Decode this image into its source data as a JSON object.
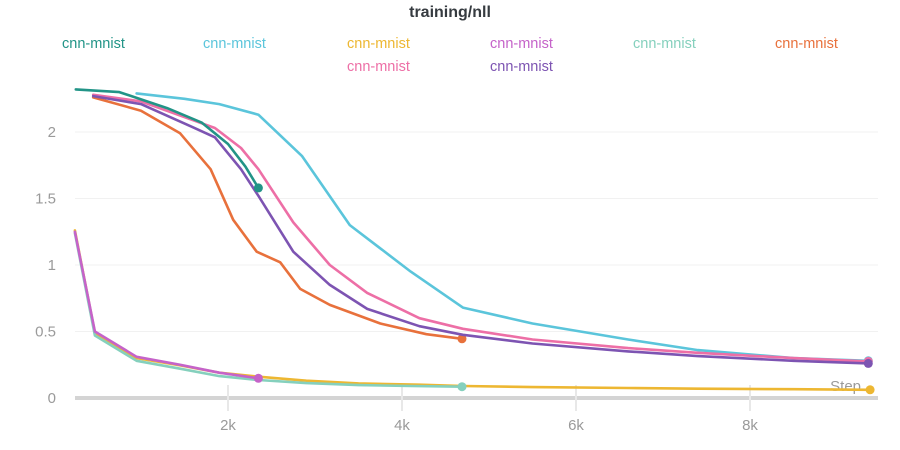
{
  "chart_data": {
    "type": "line",
    "title": "training/nll",
    "xlabel": "Step",
    "x_axis": {
      "ticks": [
        2000,
        4000,
        6000,
        8000
      ],
      "tick_labels": [
        "2k",
        "4k",
        "6k",
        "8k"
      ],
      "range": [
        0,
        9700
      ]
    },
    "y_axis": {
      "ticks": [
        0,
        0.5,
        1,
        1.5,
        2
      ],
      "tick_labels": [
        "0",
        "0.5",
        "1",
        "1.5",
        "2"
      ],
      "range": [
        0,
        2.45
      ],
      "grid": true
    },
    "legend_position": "top",
    "series": [
      {
        "label": "cnn-mnist",
        "color": "#229487",
        "points": [
          [
            250,
            2.32
          ],
          [
            750,
            2.3
          ],
          [
            1300,
            2.18
          ],
          [
            1700,
            2.07
          ],
          [
            2000,
            1.91
          ],
          [
            2200,
            1.74
          ],
          [
            2350,
            1.58
          ]
        ]
      },
      {
        "label": "cnn-mnist",
        "color": "#5BC5DB",
        "points": [
          [
            950,
            2.29
          ],
          [
            1500,
            2.25
          ],
          [
            1900,
            2.21
          ],
          [
            2350,
            2.13
          ],
          [
            2850,
            1.82
          ],
          [
            3400,
            1.3
          ],
          [
            4100,
            0.95
          ],
          [
            4700,
            0.68
          ],
          [
            5500,
            0.56
          ],
          [
            6600,
            0.44
          ],
          [
            7400,
            0.36
          ],
          [
            8500,
            0.3
          ],
          [
            9360,
            0.28
          ]
        ]
      },
      {
        "label": "cnn-mnist",
        "color": "#EDB732",
        "points": [
          [
            240,
            1.26
          ],
          [
            470,
            0.49
          ],
          [
            950,
            0.3
          ],
          [
            1450,
            0.245
          ],
          [
            1900,
            0.19
          ],
          [
            2350,
            0.16
          ],
          [
            2900,
            0.13
          ],
          [
            3500,
            0.11
          ],
          [
            4200,
            0.1
          ],
          [
            4700,
            0.09
          ],
          [
            5500,
            0.082
          ],
          [
            6600,
            0.075
          ],
          [
            7400,
            0.07
          ],
          [
            8500,
            0.066
          ],
          [
            9380,
            0.062
          ]
        ]
      },
      {
        "label": "cnn-mnist",
        "color": "#C563C9",
        "points": [
          [
            240,
            1.25
          ],
          [
            470,
            0.5
          ],
          [
            950,
            0.31
          ],
          [
            1450,
            0.25
          ],
          [
            1900,
            0.19
          ],
          [
            2350,
            0.148
          ]
        ]
      },
      {
        "label": "cnn-mnist",
        "color": "#85D0BD",
        "points": [
          [
            240,
            1.24
          ],
          [
            470,
            0.47
          ],
          [
            950,
            0.28
          ],
          [
            1450,
            0.22
          ],
          [
            1900,
            0.165
          ],
          [
            2350,
            0.135
          ],
          [
            2900,
            0.112
          ],
          [
            3500,
            0.097
          ],
          [
            4100,
            0.09
          ],
          [
            4690,
            0.085
          ]
        ]
      },
      {
        "label": "cnn-mnist",
        "color": "#E8713C",
        "points": [
          [
            450,
            2.26
          ],
          [
            1000,
            2.16
          ],
          [
            1450,
            1.99
          ],
          [
            1800,
            1.72
          ],
          [
            2060,
            1.34
          ],
          [
            2330,
            1.1
          ],
          [
            2600,
            1.02
          ],
          [
            2830,
            0.82
          ],
          [
            3170,
            0.7
          ],
          [
            3750,
            0.56
          ],
          [
            4280,
            0.48
          ],
          [
            4690,
            0.445
          ]
        ]
      },
      {
        "label": "cnn-mnist",
        "color": "#ED6FA6",
        "points": [
          [
            450,
            2.28
          ],
          [
            1000,
            2.23
          ],
          [
            1550,
            2.1
          ],
          [
            1850,
            2.03
          ],
          [
            2150,
            1.88
          ],
          [
            2350,
            1.72
          ],
          [
            2750,
            1.32
          ],
          [
            3170,
            1.0
          ],
          [
            3600,
            0.79
          ],
          [
            4200,
            0.6
          ],
          [
            4700,
            0.52
          ],
          [
            5500,
            0.44
          ],
          [
            6600,
            0.375
          ],
          [
            7400,
            0.34
          ],
          [
            8500,
            0.3
          ],
          [
            9360,
            0.275
          ]
        ]
      },
      {
        "label": "cnn-mnist",
        "color": "#7D54B2",
        "points": [
          [
            450,
            2.27
          ],
          [
            1000,
            2.21
          ],
          [
            1550,
            2.05
          ],
          [
            1850,
            1.96
          ],
          [
            2150,
            1.72
          ],
          [
            2350,
            1.52
          ],
          [
            2750,
            1.1
          ],
          [
            3170,
            0.85
          ],
          [
            3600,
            0.67
          ],
          [
            4200,
            0.54
          ],
          [
            4700,
            0.475
          ],
          [
            5500,
            0.41
          ],
          [
            6600,
            0.35
          ],
          [
            7400,
            0.315
          ],
          [
            8500,
            0.28
          ],
          [
            9360,
            0.26
          ]
        ]
      }
    ],
    "colors": {
      "title_text": "#363b40",
      "tick_text": "#9a9a9a",
      "axis_line": "#d4d4d4",
      "gridline": "#f1f1f1",
      "tick_mark": "#e8e8e8"
    }
  }
}
